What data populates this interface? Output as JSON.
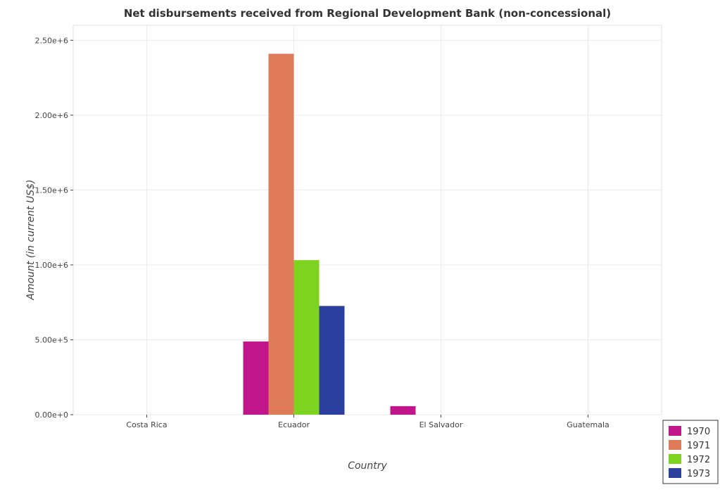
{
  "chart_data": {
    "type": "bar",
    "title": "Net disbursements received from Regional Development Bank (non-concessional)",
    "xlabel": "Country",
    "ylabel": "Amount (in current US$)",
    "categories": [
      "Costa Rica",
      "Ecuador",
      "El Salvador",
      "Guatemala"
    ],
    "series": [
      {
        "name": "1970",
        "color": "#c0168a",
        "values": [
          0,
          489000,
          57000,
          0
        ]
      },
      {
        "name": "1971",
        "color": "#e07b5a",
        "values": [
          0,
          2410000,
          0,
          0
        ]
      },
      {
        "name": "1972",
        "color": "#7ed321",
        "values": [
          0,
          1032000,
          0,
          0
        ]
      },
      {
        "name": "1973",
        "color": "#2a3f9e",
        "values": [
          0,
          726000,
          0,
          0
        ]
      }
    ],
    "ylim": [
      0,
      2600000
    ],
    "yticks": [
      0,
      500000,
      1000000,
      1500000,
      2000000,
      2500000
    ],
    "ytick_labels": [
      "0.00e+0",
      "5.00e+5",
      "1.00e+6",
      "1.50e+6",
      "2.00e+6",
      "2.50e+6"
    ],
    "grid": true,
    "legend_position": "bottom-right"
  }
}
